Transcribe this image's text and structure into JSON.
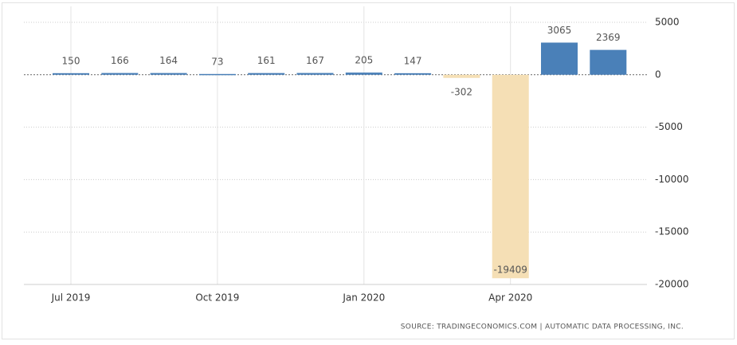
{
  "chart_data": {
    "type": "bar",
    "categories": [
      "Jul 2019",
      null,
      null,
      "Oct 2019",
      null,
      null,
      "Jan 2020",
      null,
      null,
      "Apr 2020",
      null,
      null
    ],
    "values": [
      150,
      166,
      164,
      73,
      161,
      167,
      205,
      147,
      -302,
      -19409,
      3065,
      2369
    ],
    "positive_color": "#4a80b8",
    "negative_color": "#f5dfb5",
    "ylim": [
      -20000,
      5000
    ],
    "yticks": [
      -20000,
      -15000,
      -10000,
      -5000,
      0,
      5000
    ],
    "grid": true,
    "source": "SOURCE: TRADINGECONOMICS.COM | AUTOMATIC DATA PROCESSING, INC."
  }
}
